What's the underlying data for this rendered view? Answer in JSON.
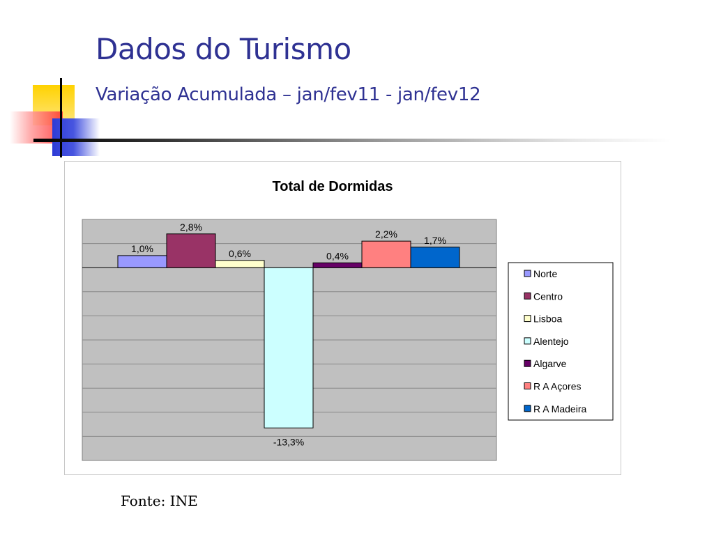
{
  "slide": {
    "title": "Dados do Turismo",
    "subtitle": "Variação Acumulada – jan/fev11 - jan/fev12",
    "source": "Fonte: INE"
  },
  "colors": {
    "title": "#2e3192",
    "plot_background": "#c0c0c0",
    "gridline": "#888888",
    "deco_yellow": "#ffd200",
    "deco_red": "#ff3030",
    "deco_blue": "#2d3bd6"
  },
  "chart_data": {
    "type": "bar",
    "title": "Total de Dormidas",
    "xlabel": "",
    "ylabel": "",
    "ylim": [
      -16,
      4
    ],
    "grid_step": 2,
    "grid": true,
    "legend_position": "right",
    "series": [
      {
        "name": "Norte",
        "value": 1.0,
        "label": "1,0%",
        "color": "#9999ff"
      },
      {
        "name": "Centro",
        "value": 2.8,
        "label": "2,8%",
        "color": "#993366"
      },
      {
        "name": "Lisboa",
        "value": 0.6,
        "label": "0,6%",
        "color": "#ffffcc"
      },
      {
        "name": "Alentejo",
        "value": -13.3,
        "label": "-13,3%",
        "color": "#ccffff"
      },
      {
        "name": "Algarve",
        "value": 0.4,
        "label": "0,4%",
        "color": "#660066"
      },
      {
        "name": "R A Açores",
        "value": 2.2,
        "label": "2,2%",
        "color": "#ff8080"
      },
      {
        "name": "R A Madeira",
        "value": 1.7,
        "label": "1,7%",
        "color": "#0066cc"
      }
    ]
  }
}
